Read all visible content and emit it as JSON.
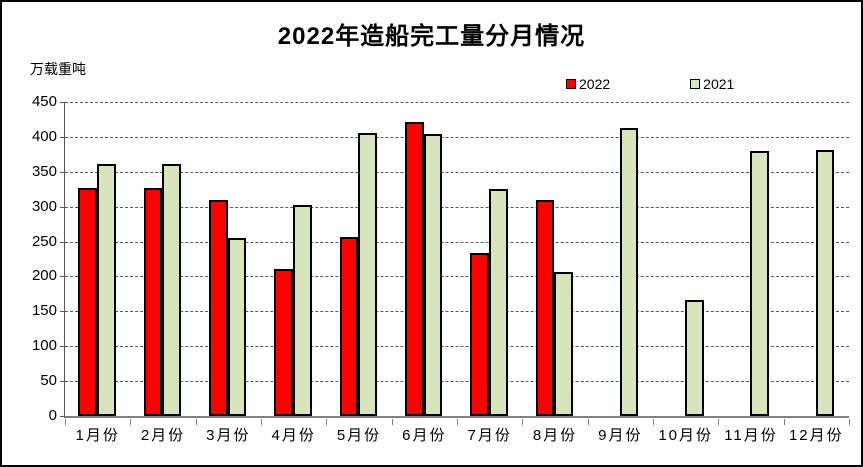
{
  "chart_data": {
    "type": "bar",
    "title": "2022年造船完工量分月情况",
    "unit_label": "万载重吨",
    "categories": [
      "1月份",
      "2月份",
      "3月份",
      "4月份",
      "5月份",
      "6月份",
      "7月份",
      "8月份",
      "9月份",
      "10月份",
      "11月份",
      "12月份"
    ],
    "series": [
      {
        "name": "2022",
        "color": "#FF0000",
        "values": [
          327,
          327,
          309,
          210,
          256,
          422,
          234,
          309,
          null,
          null,
          null,
          null
        ]
      },
      {
        "name": "2021",
        "color": "#D7E4BC",
        "values": [
          361,
          361,
          255,
          302,
          405,
          404,
          326,
          207,
          413,
          166,
          380,
          381
        ]
      }
    ],
    "ylim": [
      0,
      450
    ],
    "ytick_step": 50,
    "y_ticks": [
      0,
      50,
      100,
      150,
      200,
      250,
      300,
      350,
      400,
      450
    ],
    "grid": "horizontal-dashed",
    "legend_position": "top-right",
    "colors": {
      "bar_border": "#000000",
      "gridline": "#595959",
      "axis": "#808080",
      "background": "#ffffff"
    }
  }
}
